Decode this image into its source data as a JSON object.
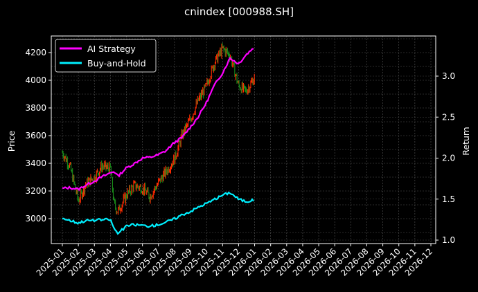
{
  "chart_data": {
    "type": "line",
    "title": "cnindex [000988.SH]",
    "xlabel": "",
    "ylabel": "Price",
    "ylabel_right": "Return",
    "ylim": [
      2860,
      4330
    ],
    "ylim_right": [
      0.98,
      3.47
    ],
    "grid": true,
    "legend_position": "upper left",
    "x_ticks": [
      "2025-01",
      "2025-02",
      "2025-03",
      "2025-04",
      "2025-05",
      "2025-06",
      "2025-07",
      "2025-08",
      "2025-09",
      "2025-10",
      "2025-11",
      "2025-12",
      "2026-01",
      "2026-02",
      "2026-03",
      "2026-04",
      "2026-05",
      "2026-06",
      "2026-07",
      "2026-08",
      "2026-09",
      "2026-10",
      "2026-11",
      "2026-12"
    ],
    "y_ticks": [
      3000,
      3200,
      3400,
      3600,
      3800,
      4000,
      4200
    ],
    "y_ticks_right": [
      1.0,
      1.5,
      2.0,
      2.5,
      3.0
    ],
    "series": [
      {
        "name": "Price (candlestick)",
        "axis": "left",
        "colors": {
          "up": "#ff2a00",
          "down": "#1a8c1a"
        },
        "x": [
          "2025-01",
          "2025-01-15",
          "2025-02",
          "2025-02-15",
          "2025-03",
          "2025-03-15",
          "2025-04",
          "2025-04-08",
          "2025-04-15",
          "2025-05",
          "2025-05-15",
          "2025-06",
          "2025-06-15",
          "2025-07",
          "2025-07-15",
          "2025-08",
          "2025-08-15",
          "2025-09",
          "2025-09-15",
          "2025-10",
          "2025-10-15",
          "2025-11",
          "2025-11-15",
          "2025-12",
          "2025-12-15",
          "2026-01"
        ],
        "values": [
          3480,
          3380,
          3130,
          3250,
          3300,
          3380,
          3360,
          3100,
          3050,
          3170,
          3240,
          3220,
          3160,
          3260,
          3340,
          3430,
          3600,
          3720,
          3850,
          3960,
          4120,
          4230,
          4180,
          3960,
          3920,
          4020
        ]
      },
      {
        "name": "AI Strategy",
        "axis": "right",
        "color": "#ff00ff",
        "x": [
          "2025-01",
          "2025-01-15",
          "2025-02",
          "2025-02-15",
          "2025-03",
          "2025-03-15",
          "2025-04",
          "2025-04-08",
          "2025-04-15",
          "2025-05",
          "2025-05-15",
          "2025-06",
          "2025-06-15",
          "2025-07",
          "2025-07-15",
          "2025-08",
          "2025-08-15",
          "2025-09",
          "2025-09-15",
          "2025-10",
          "2025-10-15",
          "2025-11",
          "2025-11-15",
          "2025-12",
          "2025-12-15",
          "2026-01"
        ],
        "values": [
          1.63,
          1.64,
          1.62,
          1.67,
          1.72,
          1.77,
          1.82,
          1.84,
          1.78,
          1.88,
          1.93,
          2.0,
          2.01,
          2.04,
          2.09,
          2.19,
          2.25,
          2.38,
          2.5,
          2.68,
          2.88,
          3.04,
          3.22,
          3.15,
          3.26,
          3.36
        ]
      },
      {
        "name": "Buy-and-Hold",
        "axis": "right",
        "color": "#00f0ff",
        "x": [
          "2025-01",
          "2025-01-15",
          "2025-02",
          "2025-02-15",
          "2025-03",
          "2025-03-15",
          "2025-04",
          "2025-04-08",
          "2025-04-15",
          "2025-05",
          "2025-05-15",
          "2025-06",
          "2025-06-15",
          "2025-07",
          "2025-07-15",
          "2025-08",
          "2025-08-15",
          "2025-09",
          "2025-09-15",
          "2025-10",
          "2025-10-15",
          "2025-11",
          "2025-11-15",
          "2025-12",
          "2025-12-15",
          "2026-01"
        ],
        "values": [
          1.27,
          1.24,
          1.21,
          1.24,
          1.24,
          1.25,
          1.25,
          1.14,
          1.08,
          1.17,
          1.19,
          1.18,
          1.17,
          1.19,
          1.22,
          1.26,
          1.31,
          1.35,
          1.4,
          1.45,
          1.49,
          1.55,
          1.58,
          1.5,
          1.47,
          1.49
        ]
      }
    ]
  },
  "legend": {
    "items": [
      {
        "label": "AI Strategy",
        "color": "#ff00ff"
      },
      {
        "label": "Buy-and-Hold",
        "color": "#00f0ff"
      }
    ]
  },
  "axes": {
    "left_label": "Price",
    "right_label": "Return"
  }
}
